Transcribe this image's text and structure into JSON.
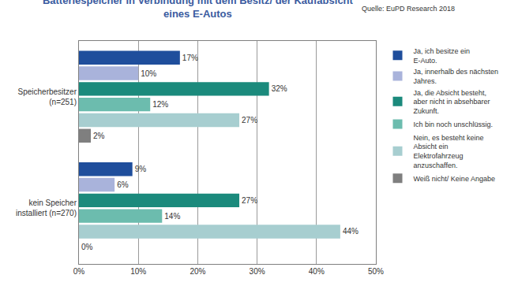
{
  "chart_data": {
    "type": "bar",
    "orientation": "horizontal",
    "title": "Batteriespeicher in Verbindung mit dem Besitz/ der Kaufabsicht eines E-Autos",
    "source": "Quelle: EuPD Research 2018",
    "categories": [
      "Speicherbesitzer (n=251)",
      "kein Speicher installiert (n=270)"
    ],
    "series": [
      {
        "name": "Ja, ich besitze ein E-Auto.",
        "color": "#1f4e9c",
        "values": [
          17,
          9
        ],
        "value_labels": [
          "17%",
          "9%"
        ]
      },
      {
        "name": "Ja, innerhalb des nächsten Jahres.",
        "color": "#a9b3db",
        "values": [
          10,
          6
        ],
        "value_labels": [
          "10%",
          "6%"
        ]
      },
      {
        "name": "Ja, die Absicht besteht, aber nicht in absehbarer Zukunft.",
        "color": "#1b8a7c",
        "values": [
          32,
          27
        ],
        "value_labels": [
          "32%",
          "27%"
        ]
      },
      {
        "name": "Ich bin noch unschlüssig.",
        "color": "#6cbcae",
        "values": [
          12,
          14
        ],
        "value_labels": [
          "12%",
          "14%"
        ]
      },
      {
        "name": "Nein, es besteht keine Absicht ein Elektrofahrzeug anzuschaffen.",
        "color": "#a7ced0",
        "values": [
          27,
          44
        ],
        "value_labels": [
          "27%",
          "44%"
        ]
      },
      {
        "name": "Weiß nicht/ Keine Angabe",
        "color": "#7f7f7f",
        "values": [
          2,
          0
        ],
        "value_labels": [
          "2%",
          "0%"
        ]
      }
    ],
    "xlim": [
      0,
      50
    ],
    "xticks": [
      {
        "value": 0,
        "label": "0%"
      },
      {
        "value": 10,
        "label": "10%"
      },
      {
        "value": 20,
        "label": "20%"
      },
      {
        "value": 30,
        "label": "30%"
      },
      {
        "value": 40,
        "label": "40%"
      },
      {
        "value": 50,
        "label": "50%"
      }
    ],
    "grid": true,
    "data_labels": true,
    "legend": "right"
  }
}
